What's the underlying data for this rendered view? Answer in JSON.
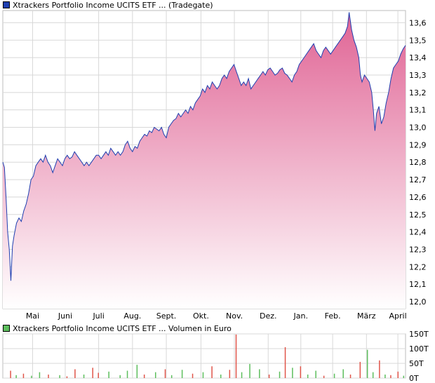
{
  "chart_data": [
    {
      "type": "area",
      "legend": "Xtrackers Portfolio Income UCITS ETF ... (Tradegate)",
      "line_color": "#1f3fb0",
      "fill_top": "#e06394",
      "fill_bottom": "#ffffff",
      "legend_color": "#1f3fb0",
      "y_ticks": [
        "13,6",
        "13,5",
        "13,4",
        "13,3",
        "13,2",
        "13,1",
        "13,0",
        "12,9",
        "12,8",
        "12,7",
        "12,6",
        "12,5",
        "12,4",
        "12,3",
        "12,2",
        "12,1",
        "12,0"
      ],
      "ylim": [
        11.96,
        13.67
      ],
      "month_ticks": [
        {
          "label": "Mai",
          "t": 0.074
        },
        {
          "label": "Juni",
          "t": 0.155
        },
        {
          "label": "Juli",
          "t": 0.238
        },
        {
          "label": "Aug.",
          "t": 0.322
        },
        {
          "label": "Sept.",
          "t": 0.406
        },
        {
          "label": "Okt.",
          "t": 0.492
        },
        {
          "label": "Nov.",
          "t": 0.575
        },
        {
          "label": "Dez.",
          "t": 0.659
        },
        {
          "label": "Jan.",
          "t": 0.74
        },
        {
          "label": "Feb.",
          "t": 0.819
        },
        {
          "label": "März",
          "t": 0.903
        },
        {
          "label": "April",
          "t": 0.981
        }
      ],
      "grid": true,
      "points": [
        [
          0.0,
          12.8
        ],
        [
          0.004,
          12.77
        ],
        [
          0.008,
          12.6
        ],
        [
          0.012,
          12.4
        ],
        [
          0.016,
          12.3
        ],
        [
          0.02,
          12.12
        ],
        [
          0.024,
          12.32
        ],
        [
          0.028,
          12.38
        ],
        [
          0.034,
          12.45
        ],
        [
          0.04,
          12.48
        ],
        [
          0.046,
          12.46
        ],
        [
          0.052,
          12.52
        ],
        [
          0.058,
          12.56
        ],
        [
          0.064,
          12.62
        ],
        [
          0.07,
          12.7
        ],
        [
          0.076,
          12.72
        ],
        [
          0.082,
          12.78
        ],
        [
          0.088,
          12.8
        ],
        [
          0.094,
          12.82
        ],
        [
          0.1,
          12.8
        ],
        [
          0.106,
          12.84
        ],
        [
          0.112,
          12.8
        ],
        [
          0.118,
          12.78
        ],
        [
          0.124,
          12.74
        ],
        [
          0.13,
          12.78
        ],
        [
          0.136,
          12.82
        ],
        [
          0.142,
          12.8
        ],
        [
          0.148,
          12.78
        ],
        [
          0.154,
          12.82
        ],
        [
          0.16,
          12.84
        ],
        [
          0.166,
          12.82
        ],
        [
          0.172,
          12.83
        ],
        [
          0.178,
          12.86
        ],
        [
          0.184,
          12.84
        ],
        [
          0.19,
          12.82
        ],
        [
          0.196,
          12.8
        ],
        [
          0.202,
          12.78
        ],
        [
          0.208,
          12.8
        ],
        [
          0.214,
          12.78
        ],
        [
          0.22,
          12.8
        ],
        [
          0.226,
          12.82
        ],
        [
          0.232,
          12.84
        ],
        [
          0.238,
          12.84
        ],
        [
          0.244,
          12.82
        ],
        [
          0.25,
          12.84
        ],
        [
          0.256,
          12.86
        ],
        [
          0.262,
          12.84
        ],
        [
          0.268,
          12.88
        ],
        [
          0.274,
          12.86
        ],
        [
          0.28,
          12.84
        ],
        [
          0.286,
          12.86
        ],
        [
          0.292,
          12.84
        ],
        [
          0.298,
          12.86
        ],
        [
          0.304,
          12.9
        ],
        [
          0.31,
          12.92
        ],
        [
          0.316,
          12.88
        ],
        [
          0.322,
          12.86
        ],
        [
          0.328,
          12.89
        ],
        [
          0.334,
          12.88
        ],
        [
          0.34,
          12.92
        ],
        [
          0.346,
          12.94
        ],
        [
          0.352,
          12.96
        ],
        [
          0.358,
          12.95
        ],
        [
          0.364,
          12.98
        ],
        [
          0.37,
          12.97
        ],
        [
          0.376,
          13.0
        ],
        [
          0.382,
          12.99
        ],
        [
          0.388,
          12.98
        ],
        [
          0.394,
          13.0
        ],
        [
          0.4,
          12.96
        ],
        [
          0.406,
          12.94
        ],
        [
          0.412,
          13.0
        ],
        [
          0.418,
          13.02
        ],
        [
          0.424,
          13.04
        ],
        [
          0.43,
          13.05
        ],
        [
          0.436,
          13.08
        ],
        [
          0.442,
          13.06
        ],
        [
          0.448,
          13.08
        ],
        [
          0.454,
          13.1
        ],
        [
          0.46,
          13.08
        ],
        [
          0.466,
          13.12
        ],
        [
          0.472,
          13.1
        ],
        [
          0.478,
          13.14
        ],
        [
          0.484,
          13.16
        ],
        [
          0.49,
          13.18
        ],
        [
          0.496,
          13.22
        ],
        [
          0.502,
          13.2
        ],
        [
          0.508,
          13.24
        ],
        [
          0.514,
          13.22
        ],
        [
          0.52,
          13.26
        ],
        [
          0.526,
          13.24
        ],
        [
          0.532,
          13.22
        ],
        [
          0.538,
          13.24
        ],
        [
          0.544,
          13.28
        ],
        [
          0.55,
          13.3
        ],
        [
          0.556,
          13.28
        ],
        [
          0.562,
          13.32
        ],
        [
          0.568,
          13.34
        ],
        [
          0.574,
          13.36
        ],
        [
          0.58,
          13.32
        ],
        [
          0.586,
          13.28
        ],
        [
          0.592,
          13.24
        ],
        [
          0.598,
          13.26
        ],
        [
          0.604,
          13.24
        ],
        [
          0.61,
          13.28
        ],
        [
          0.616,
          13.22
        ],
        [
          0.622,
          13.24
        ],
        [
          0.628,
          13.26
        ],
        [
          0.634,
          13.28
        ],
        [
          0.64,
          13.3
        ],
        [
          0.646,
          13.32
        ],
        [
          0.652,
          13.3
        ],
        [
          0.658,
          13.33
        ],
        [
          0.664,
          13.34
        ],
        [
          0.67,
          13.32
        ],
        [
          0.676,
          13.3
        ],
        [
          0.682,
          13.31
        ],
        [
          0.688,
          13.33
        ],
        [
          0.694,
          13.34
        ],
        [
          0.7,
          13.31
        ],
        [
          0.706,
          13.3
        ],
        [
          0.712,
          13.28
        ],
        [
          0.718,
          13.26
        ],
        [
          0.724,
          13.3
        ],
        [
          0.73,
          13.32
        ],
        [
          0.736,
          13.36
        ],
        [
          0.742,
          13.38
        ],
        [
          0.748,
          13.4
        ],
        [
          0.754,
          13.42
        ],
        [
          0.76,
          13.44
        ],
        [
          0.766,
          13.46
        ],
        [
          0.772,
          13.48
        ],
        [
          0.778,
          13.44
        ],
        [
          0.784,
          13.42
        ],
        [
          0.79,
          13.4
        ],
        [
          0.796,
          13.44
        ],
        [
          0.802,
          13.46
        ],
        [
          0.808,
          13.44
        ],
        [
          0.814,
          13.42
        ],
        [
          0.82,
          13.44
        ],
        [
          0.826,
          13.46
        ],
        [
          0.832,
          13.48
        ],
        [
          0.838,
          13.5
        ],
        [
          0.844,
          13.52
        ],
        [
          0.85,
          13.54
        ],
        [
          0.856,
          13.58
        ],
        [
          0.86,
          13.66
        ],
        [
          0.866,
          13.56
        ],
        [
          0.872,
          13.5
        ],
        [
          0.878,
          13.46
        ],
        [
          0.884,
          13.4
        ],
        [
          0.888,
          13.3
        ],
        [
          0.892,
          13.26
        ],
        [
          0.898,
          13.3
        ],
        [
          0.904,
          13.28
        ],
        [
          0.91,
          13.26
        ],
        [
          0.916,
          13.2
        ],
        [
          0.92,
          13.1
        ],
        [
          0.924,
          12.98
        ],
        [
          0.928,
          13.08
        ],
        [
          0.934,
          13.12
        ],
        [
          0.94,
          13.02
        ],
        [
          0.946,
          13.06
        ],
        [
          0.952,
          13.14
        ],
        [
          0.958,
          13.2
        ],
        [
          0.964,
          13.28
        ],
        [
          0.97,
          13.34
        ],
        [
          0.976,
          13.36
        ],
        [
          0.982,
          13.38
        ],
        [
          0.988,
          13.42
        ],
        [
          0.994,
          13.45
        ],
        [
          1.0,
          13.47
        ]
      ]
    },
    {
      "type": "bar",
      "legend": "Xtrackers Portfolio Income UCITS ETF ... Volumen in Euro",
      "legend_color": "#5dbe5d",
      "y_ticks": [
        "150T",
        "100T",
        "50T",
        "0T"
      ],
      "ylim": [
        0,
        150
      ],
      "up_color": "#5dbe5d",
      "down_color": "#e0554a",
      "bars": [
        {
          "t": 0.018,
          "v": 25,
          "d": 1
        },
        {
          "t": 0.032,
          "v": 10,
          "d": 0
        },
        {
          "t": 0.05,
          "v": 15,
          "d": 1
        },
        {
          "t": 0.07,
          "v": 8,
          "d": 0
        },
        {
          "t": 0.09,
          "v": 20,
          "d": 0
        },
        {
          "t": 0.112,
          "v": 12,
          "d": 1
        },
        {
          "t": 0.14,
          "v": 10,
          "d": 0
        },
        {
          "t": 0.158,
          "v": 6,
          "d": 1
        },
        {
          "t": 0.178,
          "v": 30,
          "d": 1
        },
        {
          "t": 0.2,
          "v": 12,
          "d": 0
        },
        {
          "t": 0.222,
          "v": 35,
          "d": 1
        },
        {
          "t": 0.236,
          "v": 18,
          "d": 1
        },
        {
          "t": 0.262,
          "v": 22,
          "d": 0
        },
        {
          "t": 0.29,
          "v": 10,
          "d": 0
        },
        {
          "t": 0.308,
          "v": 25,
          "d": 0
        },
        {
          "t": 0.332,
          "v": 45,
          "d": 0
        },
        {
          "t": 0.35,
          "v": 12,
          "d": 1
        },
        {
          "t": 0.378,
          "v": 20,
          "d": 0
        },
        {
          "t": 0.402,
          "v": 30,
          "d": 1
        },
        {
          "t": 0.418,
          "v": 10,
          "d": 0
        },
        {
          "t": 0.444,
          "v": 28,
          "d": 0
        },
        {
          "t": 0.47,
          "v": 15,
          "d": 1
        },
        {
          "t": 0.496,
          "v": 20,
          "d": 0
        },
        {
          "t": 0.518,
          "v": 40,
          "d": 1
        },
        {
          "t": 0.54,
          "v": 12,
          "d": 0
        },
        {
          "t": 0.562,
          "v": 28,
          "d": 1
        },
        {
          "t": 0.578,
          "v": 148,
          "d": 1
        },
        {
          "t": 0.592,
          "v": 20,
          "d": 0
        },
        {
          "t": 0.612,
          "v": 48,
          "d": 0
        },
        {
          "t": 0.636,
          "v": 30,
          "d": 0
        },
        {
          "t": 0.66,
          "v": 12,
          "d": 1
        },
        {
          "t": 0.686,
          "v": 22,
          "d": 0
        },
        {
          "t": 0.7,
          "v": 105,
          "d": 1
        },
        {
          "t": 0.718,
          "v": 35,
          "d": 0
        },
        {
          "t": 0.738,
          "v": 40,
          "d": 1
        },
        {
          "t": 0.756,
          "v": 12,
          "d": 0
        },
        {
          "t": 0.776,
          "v": 25,
          "d": 0
        },
        {
          "t": 0.796,
          "v": 8,
          "d": 1
        },
        {
          "t": 0.822,
          "v": 15,
          "d": 0
        },
        {
          "t": 0.844,
          "v": 30,
          "d": 0
        },
        {
          "t": 0.862,
          "v": 12,
          "d": 1
        },
        {
          "t": 0.886,
          "v": 55,
          "d": 1
        },
        {
          "t": 0.904,
          "v": 96,
          "d": 0
        },
        {
          "t": 0.918,
          "v": 20,
          "d": 0
        },
        {
          "t": 0.934,
          "v": 60,
          "d": 1
        },
        {
          "t": 0.948,
          "v": 12,
          "d": 0
        },
        {
          "t": 0.962,
          "v": 10,
          "d": 1
        },
        {
          "t": 0.98,
          "v": 22,
          "d": 1
        },
        {
          "t": 0.994,
          "v": 8,
          "d": 0
        }
      ]
    }
  ]
}
